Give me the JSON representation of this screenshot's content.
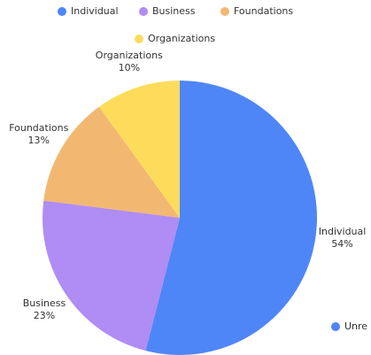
{
  "chart_data": {
    "type": "pie",
    "categories": [
      "Individual",
      "Business",
      "Foundations",
      "Organizations"
    ],
    "values": [
      54,
      23,
      13,
      10
    ],
    "value_labels": [
      "54%",
      "23%",
      "13%",
      "10%"
    ],
    "colors": [
      "#4f86f7",
      "#b08cf5",
      "#f2b872",
      "#fddc5c"
    ],
    "partial_legend": {
      "name": "Unre",
      "color": "#4f86f7"
    }
  }
}
